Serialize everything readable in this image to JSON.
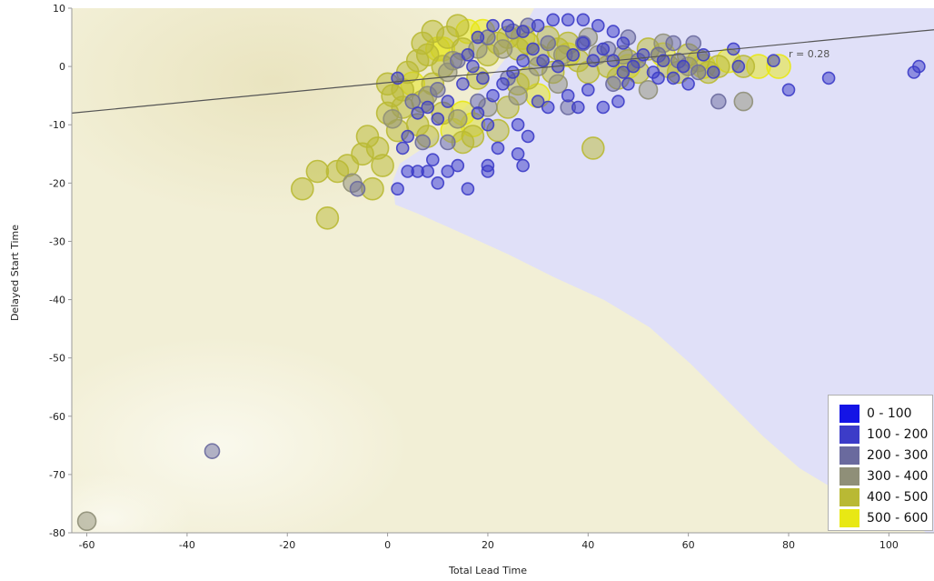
{
  "chart_data": {
    "type": "scatter",
    "xlabel": "Total Lead Time",
    "ylabel": "Delayed Start Time",
    "xlim": [
      -63,
      109
    ],
    "ylim": [
      -80,
      10
    ],
    "x_ticks": [
      -60,
      -40,
      -20,
      0,
      20,
      40,
      60,
      80,
      100
    ],
    "y_ticks": [
      10,
      0,
      -10,
      -20,
      -30,
      -40,
      -50,
      -60,
      -70,
      -80
    ],
    "regression": {
      "from": [
        -63,
        -8
      ],
      "to": [
        109,
        6.3
      ],
      "label": "r = 0.28"
    },
    "legend": {
      "position": "bottom-right",
      "entries": [
        {
          "label": "0 - 100",
          "color": "#1414e6"
        },
        {
          "label": "100 - 200",
          "color": "#3c3cc8"
        },
        {
          "label": "200 - 300",
          "color": "#6a6a9e"
        },
        {
          "label": "300 - 400",
          "color": "#8f8f78"
        },
        {
          "label": "400 - 500",
          "color": "#b9b934"
        },
        {
          "label": "500 - 600",
          "color": "#e8e814"
        }
      ]
    },
    "background_regions": {
      "yellow": "#f2efd6",
      "blue": "#e0e0f8"
    },
    "points": [
      {
        "x": -60,
        "y": -78,
        "c": 3
      },
      {
        "x": -35,
        "y": -66,
        "c": 2
      },
      {
        "x": -12,
        "y": -26,
        "c": 4
      },
      {
        "x": -17,
        "y": -21,
        "c": 4
      },
      {
        "x": -14,
        "y": -18,
        "c": 4
      },
      {
        "x": -10,
        "y": -18,
        "c": 4
      },
      {
        "x": -7,
        "y": -20,
        "c": 3
      },
      {
        "x": -3,
        "y": -21,
        "c": 4
      },
      {
        "x": -6,
        "y": -21,
        "c": 2
      },
      {
        "x": -8,
        "y": -17,
        "c": 4
      },
      {
        "x": -5,
        "y": -15,
        "c": 4
      },
      {
        "x": -4,
        "y": -12,
        "c": 4
      },
      {
        "x": -2,
        "y": -14,
        "c": 4
      },
      {
        "x": -1,
        "y": -17,
        "c": 4
      },
      {
        "x": 1,
        "y": -9,
        "c": 3
      },
      {
        "x": 0,
        "y": -8,
        "c": 4
      },
      {
        "x": 2,
        "y": -11,
        "c": 4
      },
      {
        "x": 3,
        "y": -7,
        "c": 4
      },
      {
        "x": 1,
        "y": -5,
        "c": 4
      },
      {
        "x": 0,
        "y": -3,
        "c": 4
      },
      {
        "x": 3,
        "y": -4,
        "c": 4
      },
      {
        "x": 5,
        "y": -3,
        "c": 5
      },
      {
        "x": 2,
        "y": -2,
        "c": 1
      },
      {
        "x": 4,
        "y": -1,
        "c": 4
      },
      {
        "x": 6,
        "y": 1,
        "c": 4
      },
      {
        "x": 8,
        "y": 2,
        "c": 4
      },
      {
        "x": 7,
        "y": 4,
        "c": 4
      },
      {
        "x": 10,
        "y": 3,
        "c": 5
      },
      {
        "x": 12,
        "y": 5,
        "c": 4
      },
      {
        "x": 9,
        "y": 6,
        "c": 4
      },
      {
        "x": 14,
        "y": 7,
        "c": 4
      },
      {
        "x": 16,
        "y": 6,
        "c": 5
      },
      {
        "x": 13,
        "y": 1,
        "c": 3
      },
      {
        "x": 15,
        "y": 3,
        "c": 4
      },
      {
        "x": 11,
        "y": 0,
        "c": 4
      },
      {
        "x": 9,
        "y": -3,
        "c": 4
      },
      {
        "x": 7,
        "y": -6,
        "c": 4
      },
      {
        "x": 6,
        "y": -10,
        "c": 4
      },
      {
        "x": 8,
        "y": -12,
        "c": 4
      },
      {
        "x": 11,
        "y": -8,
        "c": 4
      },
      {
        "x": 13,
        "y": -11,
        "c": 5
      },
      {
        "x": 15,
        "y": -13,
        "c": 4
      },
      {
        "x": 14,
        "y": -9,
        "c": 3
      },
      {
        "x": 17,
        "y": -12,
        "c": 4
      },
      {
        "x": 18,
        "y": -2,
        "c": 4
      },
      {
        "x": 20,
        "y": 2,
        "c": 4
      },
      {
        "x": 22,
        "y": 4,
        "c": 4
      },
      {
        "x": 19,
        "y": 6,
        "c": 5
      },
      {
        "x": 24,
        "y": 5,
        "c": 4
      },
      {
        "x": 26,
        "y": 3,
        "c": 4
      },
      {
        "x": 25,
        "y": 6,
        "c": 2
      },
      {
        "x": 28,
        "y": 4,
        "c": 4
      },
      {
        "x": 30,
        "y": 2,
        "c": 4
      },
      {
        "x": 32,
        "y": 5,
        "c": 4
      },
      {
        "x": 34,
        "y": 3,
        "c": 4
      },
      {
        "x": 36,
        "y": 4,
        "c": 4
      },
      {
        "x": 38,
        "y": 1,
        "c": 4
      },
      {
        "x": 40,
        "y": -1,
        "c": 4
      },
      {
        "x": 22,
        "y": -11,
        "c": 4
      },
      {
        "x": 24,
        "y": -7,
        "c": 4
      },
      {
        "x": 26,
        "y": -3,
        "c": 4
      },
      {
        "x": 28,
        "y": -2,
        "c": 4
      },
      {
        "x": 30,
        "y": -5,
        "c": 5
      },
      {
        "x": 33,
        "y": -1,
        "c": 4
      },
      {
        "x": 41,
        "y": -14,
        "c": 4
      },
      {
        "x": 44,
        "y": 0,
        "c": 4
      },
      {
        "x": 46,
        "y": -2,
        "c": 4
      },
      {
        "x": 48,
        "y": 1,
        "c": 4
      },
      {
        "x": 50,
        "y": -1,
        "c": 4
      },
      {
        "x": 52,
        "y": 3,
        "c": 4
      },
      {
        "x": 52,
        "y": -4,
        "c": 3
      },
      {
        "x": 56,
        "y": 0,
        "c": 4
      },
      {
        "x": 58,
        "y": -1,
        "c": 4
      },
      {
        "x": 60,
        "y": 2,
        "c": 4
      },
      {
        "x": 62,
        "y": 1,
        "c": 4
      },
      {
        "x": 64,
        "y": -1,
        "c": 4
      },
      {
        "x": 66,
        "y": 0,
        "c": 4
      },
      {
        "x": 68,
        "y": 1,
        "c": 5
      },
      {
        "x": 71,
        "y": 0,
        "c": 4
      },
      {
        "x": 74,
        "y": 0,
        "c": 5
      },
      {
        "x": 78,
        "y": 0,
        "c": 5
      },
      {
        "x": 71,
        "y": -6,
        "c": 3
      },
      {
        "x": 66,
        "y": -6,
        "c": 2
      },
      {
        "x": 57,
        "y": 4,
        "c": 2
      },
      {
        "x": 61,
        "y": 4,
        "c": 2
      },
      {
        "x": 15,
        "y": -3,
        "c": 1
      },
      {
        "x": 18,
        "y": -8,
        "c": 1
      },
      {
        "x": 20,
        "y": -10,
        "c": 1
      },
      {
        "x": 22,
        "y": -14,
        "c": 1
      },
      {
        "x": 14,
        "y": -17,
        "c": 1
      },
      {
        "x": 12,
        "y": -18,
        "c": 1
      },
      {
        "x": 10,
        "y": -20,
        "c": 1
      },
      {
        "x": 8,
        "y": -18,
        "c": 1
      },
      {
        "x": 6,
        "y": -18,
        "c": 1
      },
      {
        "x": 4,
        "y": -18,
        "c": 1
      },
      {
        "x": 2,
        "y": -21,
        "c": 1
      },
      {
        "x": 4,
        "y": -12,
        "c": 1
      },
      {
        "x": 3,
        "y": -14,
        "c": 1
      },
      {
        "x": 7,
        "y": -13,
        "c": 2
      },
      {
        "x": 9,
        "y": -16,
        "c": 1
      },
      {
        "x": 16,
        "y": -21,
        "c": 1
      },
      {
        "x": 20,
        "y": -17,
        "c": 1
      },
      {
        "x": 20,
        "y": -18,
        "c": 1
      },
      {
        "x": 26,
        "y": -15,
        "c": 1
      },
      {
        "x": 27,
        "y": -17,
        "c": 1
      },
      {
        "x": 28,
        "y": -12,
        "c": 1
      },
      {
        "x": 26,
        "y": -10,
        "c": 1
      },
      {
        "x": 30,
        "y": -6,
        "c": 1
      },
      {
        "x": 32,
        "y": -7,
        "c": 1
      },
      {
        "x": 36,
        "y": -5,
        "c": 1
      },
      {
        "x": 38,
        "y": -7,
        "c": 1
      },
      {
        "x": 40,
        "y": -4,
        "c": 1
      },
      {
        "x": 43,
        "y": -7,
        "c": 1
      },
      {
        "x": 46,
        "y": -6,
        "c": 1
      },
      {
        "x": 48,
        "y": -3,
        "c": 1
      },
      {
        "x": 54,
        "y": -2,
        "c": 1
      },
      {
        "x": 60,
        "y": -3,
        "c": 1
      },
      {
        "x": 65,
        "y": -1,
        "c": 1
      },
      {
        "x": 70,
        "y": 0,
        "c": 1
      },
      {
        "x": 80,
        "y": -4,
        "c": 1
      },
      {
        "x": 88,
        "y": -2,
        "c": 1
      },
      {
        "x": 105,
        "y": -1,
        "c": 1
      },
      {
        "x": 106,
        "y": 0,
        "c": 1
      },
      {
        "x": 77,
        "y": 1,
        "c": 1
      },
      {
        "x": 69,
        "y": 3,
        "c": 1
      },
      {
        "x": 63,
        "y": 2,
        "c": 1
      },
      {
        "x": 59,
        "y": 0,
        "c": 1
      },
      {
        "x": 55,
        "y": 1,
        "c": 1
      },
      {
        "x": 51,
        "y": 2,
        "c": 1
      },
      {
        "x": 47,
        "y": 4,
        "c": 1
      },
      {
        "x": 45,
        "y": 6,
        "c": 1
      },
      {
        "x": 42,
        "y": 7,
        "c": 1
      },
      {
        "x": 39,
        "y": 8,
        "c": 1
      },
      {
        "x": 36,
        "y": 8,
        "c": 1
      },
      {
        "x": 33,
        "y": 8,
        "c": 1
      },
      {
        "x": 30,
        "y": 7,
        "c": 1
      },
      {
        "x": 27,
        "y": 6,
        "c": 1
      },
      {
        "x": 24,
        "y": 7,
        "c": 1
      },
      {
        "x": 21,
        "y": 7,
        "c": 1
      },
      {
        "x": 18,
        "y": 5,
        "c": 1
      },
      {
        "x": 16,
        "y": 2,
        "c": 1
      },
      {
        "x": 17,
        "y": 0,
        "c": 1
      },
      {
        "x": 19,
        "y": -2,
        "c": 1
      },
      {
        "x": 21,
        "y": -5,
        "c": 1
      },
      {
        "x": 23,
        "y": -3,
        "c": 1
      },
      {
        "x": 25,
        "y": -1,
        "c": 1
      },
      {
        "x": 27,
        "y": 1,
        "c": 1
      },
      {
        "x": 29,
        "y": 3,
        "c": 1
      },
      {
        "x": 31,
        "y": 1,
        "c": 1
      },
      {
        "x": 34,
        "y": 0,
        "c": 1
      },
      {
        "x": 37,
        "y": 2,
        "c": 1
      },
      {
        "x": 39,
        "y": 4,
        "c": 1
      },
      {
        "x": 41,
        "y": 1,
        "c": 1
      },
      {
        "x": 43,
        "y": 3,
        "c": 1
      },
      {
        "x": 45,
        "y": 1,
        "c": 1
      },
      {
        "x": 47,
        "y": -1,
        "c": 1
      },
      {
        "x": 49,
        "y": 0,
        "c": 1
      },
      {
        "x": 53,
        "y": -1,
        "c": 1
      },
      {
        "x": 57,
        "y": -2,
        "c": 1
      },
      {
        "x": 12,
        "y": -6,
        "c": 1
      },
      {
        "x": 10,
        "y": -9,
        "c": 1
      },
      {
        "x": 8,
        "y": -7,
        "c": 1
      },
      {
        "x": 6,
        "y": -8,
        "c": 1
      },
      {
        "x": 12,
        "y": -13,
        "c": 2
      },
      {
        "x": 18,
        "y": -6,
        "c": 2
      },
      {
        "x": 20,
        "y": 5,
        "c": 2
      },
      {
        "x": 32,
        "y": 4,
        "c": 2
      },
      {
        "x": 39,
        "y": 4,
        "c": 2
      },
      {
        "x": 50,
        "y": 1,
        "c": 2
      },
      {
        "x": 45,
        "y": -3,
        "c": 2
      },
      {
        "x": 36,
        "y": -7,
        "c": 2
      },
      {
        "x": 24,
        "y": -2,
        "c": 2
      },
      {
        "x": 44,
        "y": 3,
        "c": 2
      },
      {
        "x": 54,
        "y": 2,
        "c": 2
      },
      {
        "x": 58,
        "y": 1,
        "c": 2
      },
      {
        "x": 62,
        "y": -1,
        "c": 2
      },
      {
        "x": 48,
        "y": 5,
        "c": 2
      },
      {
        "x": 28,
        "y": 7,
        "c": 2
      },
      {
        "x": 14,
        "y": 1,
        "c": 2
      },
      {
        "x": 10,
        "y": -4,
        "c": 2
      },
      {
        "x": 5,
        "y": -6,
        "c": 2
      },
      {
        "x": 30,
        "y": 0,
        "c": 3
      },
      {
        "x": 35,
        "y": 2,
        "c": 3
      },
      {
        "x": 42,
        "y": 2,
        "c": 3
      },
      {
        "x": 47,
        "y": 2,
        "c": 3
      },
      {
        "x": 55,
        "y": 4,
        "c": 3
      },
      {
        "x": 60,
        "y": 0,
        "c": 3
      },
      {
        "x": 23,
        "y": 3,
        "c": 3
      },
      {
        "x": 18,
        "y": 3,
        "c": 3
      },
      {
        "x": 12,
        "y": -1,
        "c": 3
      },
      {
        "x": 8,
        "y": -5,
        "c": 3
      },
      {
        "x": 20,
        "y": -7,
        "c": 3
      },
      {
        "x": 26,
        "y": -5,
        "c": 3
      },
      {
        "x": 34,
        "y": -3,
        "c": 3
      },
      {
        "x": 40,
        "y": 5,
        "c": 3
      },
      {
        "x": 17,
        "y": -10,
        "c": 5
      },
      {
        "x": 15,
        "y": -8,
        "c": 5
      },
      {
        "x": 11,
        "y": 3,
        "c": 5
      },
      {
        "x": 27,
        "y": 5,
        "c": 5
      },
      {
        "x": 36,
        "y": 2,
        "c": 5
      },
      {
        "x": 48,
        "y": 0,
        "c": 5
      },
      {
        "x": 63,
        "y": 0,
        "c": 5
      },
      {
        "x": 55,
        "y": 2,
        "c": 5
      }
    ]
  }
}
